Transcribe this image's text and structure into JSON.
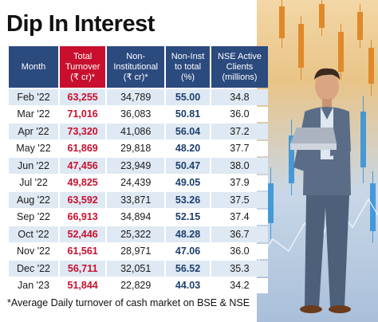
{
  "title": "Dip In Interest",
  "headers": {
    "month": "Month",
    "total_turnover_1": "Total",
    "total_turnover_2": "Turnover",
    "total_turnover_3": "(₹ cr)*",
    "non_inst_1": "Non-",
    "non_inst_2": "Institutional",
    "non_inst_3": "(₹ cr)*",
    "non_inst_total_1": "Non-Inst",
    "non_inst_total_2": "to total",
    "non_inst_total_3": "(%)",
    "nse_1": "NSE Active",
    "nse_2": "Clients",
    "nse_3": "(millions)"
  },
  "rows": [
    {
      "month": "Feb '22",
      "total": "63,255",
      "non_inst": "34,789",
      "pct": "55.00",
      "clients": "34.8"
    },
    {
      "month": "Mar '22",
      "total": "71,016",
      "non_inst": "36,083",
      "pct": "50.81",
      "clients": "36.0"
    },
    {
      "month": "Apr '22",
      "total": "73,320",
      "non_inst": "41,086",
      "pct": "56.04",
      "clients": "37.2"
    },
    {
      "month": "May '22",
      "total": "61,869",
      "non_inst": "29,818",
      "pct": "48.20",
      "clients": "37.7"
    },
    {
      "month": "Jun '22",
      "total": "47,456",
      "non_inst": "23,949",
      "pct": "50.47",
      "clients": "38.0"
    },
    {
      "month": "Jul '22",
      "total": "49,825",
      "non_inst": "24,439",
      "pct": "49.05",
      "clients": "37.9"
    },
    {
      "month": "Aug '22",
      "total": "63,592",
      "non_inst": "33,871",
      "pct": "53.26",
      "clients": "37.5"
    },
    {
      "month": "Sep '22",
      "total": "66,913",
      "non_inst": "34,894",
      "pct": "52.15",
      "clients": "37.4"
    },
    {
      "month": "Oct '22",
      "total": "52,446",
      "non_inst": "25,322",
      "pct": "48.28",
      "clients": "36.7"
    },
    {
      "month": "Nov '22",
      "total": "61,561",
      "non_inst": "28,971",
      "pct": "47.06",
      "clients": "36.0"
    },
    {
      "month": "Dec '22",
      "total": "56,711",
      "non_inst": "32,051",
      "pct": "56.52",
      "clients": "35.3"
    },
    {
      "month": "Jan '23",
      "total": "51,844",
      "non_inst": "22,829",
      "pct": "44.03",
      "clients": "34.2"
    }
  ],
  "footnote": "*Average Daily turnover of cash market on BSE & NSE",
  "colors": {
    "header_blue": "#2b4a7e",
    "highlight_red": "#c8102e",
    "row_tint": "#dfe9f3"
  }
}
